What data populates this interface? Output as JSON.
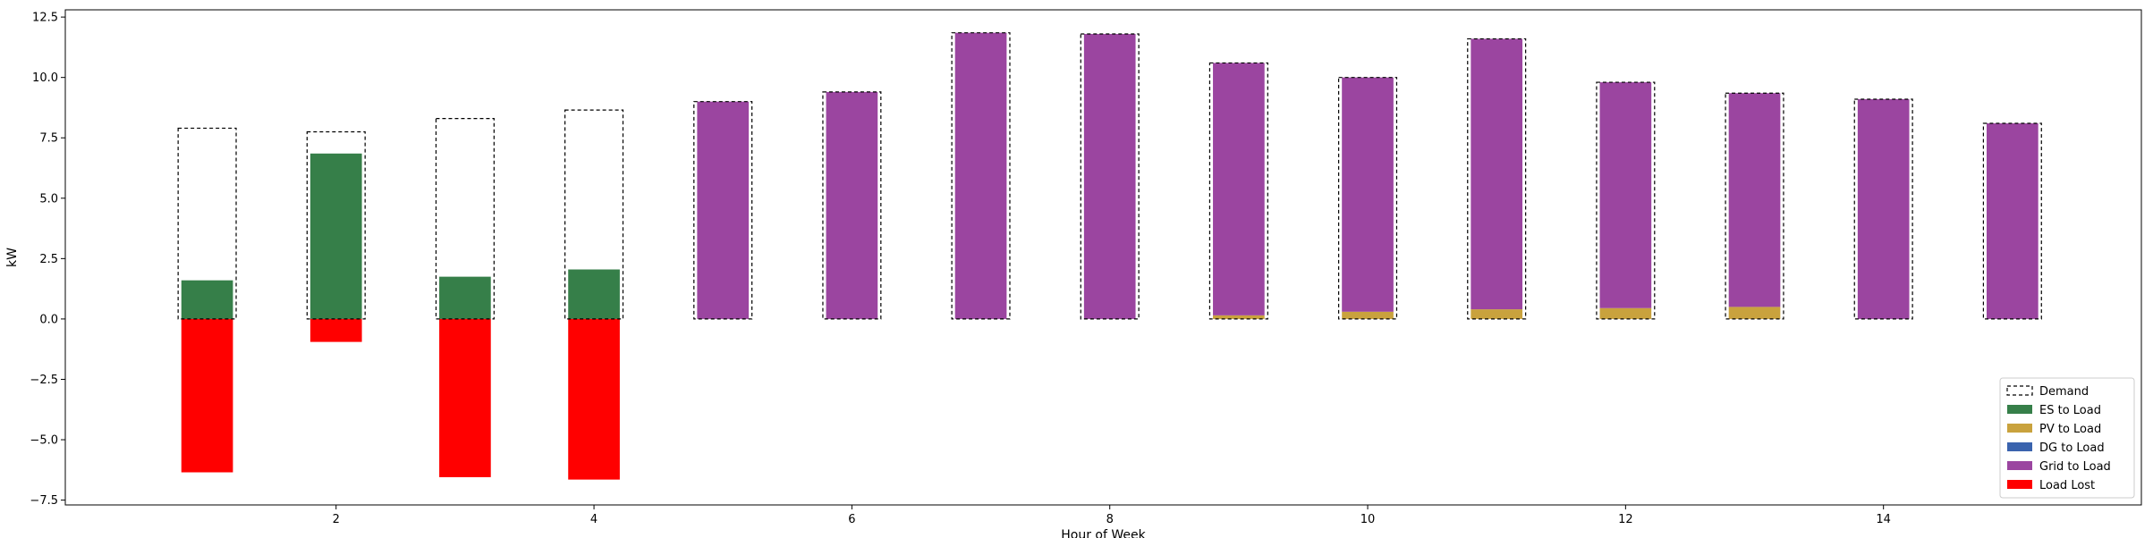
{
  "chart_data": {
    "type": "bar",
    "stacked": true,
    "xlabel": "Hour of Week",
    "ylabel": "kW",
    "xlim": [
      -0.1,
      16.0
    ],
    "ylim": [
      -7.7,
      12.8
    ],
    "xticks": [
      2,
      4,
      6,
      8,
      10,
      12,
      14
    ],
    "xtick_labels": [
      "2",
      "4",
      "6",
      "8",
      "10",
      "12",
      "14"
    ],
    "yticks": [
      -7.5,
      -5.0,
      -2.5,
      0.0,
      2.5,
      5.0,
      7.5,
      10.0,
      12.5
    ],
    "ytick_labels": [
      "−7.5",
      "−5.0",
      "−2.5",
      "0.0",
      "2.5",
      "5.0",
      "7.5",
      "10.0",
      "12.5"
    ],
    "grid": false,
    "legend_position": "lower-right",
    "x": [
      1,
      2,
      3,
      4,
      5,
      6,
      7,
      8,
      9,
      10,
      11,
      12,
      13,
      14,
      15
    ],
    "bar_width": 0.4,
    "demand": {
      "name": "Demand",
      "values": [
        7.9,
        7.75,
        8.3,
        8.65,
        9.0,
        9.4,
        11.85,
        11.8,
        10.6,
        10.0,
        11.6,
        9.8,
        9.35,
        9.1,
        8.1
      ],
      "style": "dashed-outline",
      "color": "#000000",
      "width": 0.45
    },
    "series": [
      {
        "name": "ES to Load",
        "color": "#367f49",
        "values": [
          1.6,
          6.85,
          1.75,
          2.05,
          0,
          0,
          0,
          0,
          0,
          0,
          0,
          0,
          0,
          0,
          0
        ]
      },
      {
        "name": "PV to Load",
        "color": "#c9a23d",
        "values": [
          0,
          0,
          0,
          0,
          0,
          0,
          0,
          0,
          0.15,
          0.3,
          0.4,
          0.45,
          0.5,
          0,
          0
        ]
      },
      {
        "name": "DG to Load",
        "color": "#3a63ae",
        "values": [
          0,
          0,
          0,
          0,
          0,
          0,
          0,
          0,
          0,
          0,
          0,
          0,
          0,
          0,
          0
        ]
      },
      {
        "name": "Grid to Load",
        "color": "#9b45a0",
        "values": [
          0,
          0,
          0,
          0,
          9.0,
          9.4,
          11.85,
          11.8,
          10.45,
          9.7,
          11.2,
          9.35,
          8.85,
          9.1,
          8.1
        ]
      },
      {
        "name": "Load Lost",
        "color": "#ff0000",
        "negative": true,
        "values": [
          -6.35,
          -0.95,
          -6.55,
          -6.65,
          0,
          0,
          0,
          0,
          0,
          0,
          0,
          0,
          0,
          0,
          0
        ]
      }
    ]
  }
}
